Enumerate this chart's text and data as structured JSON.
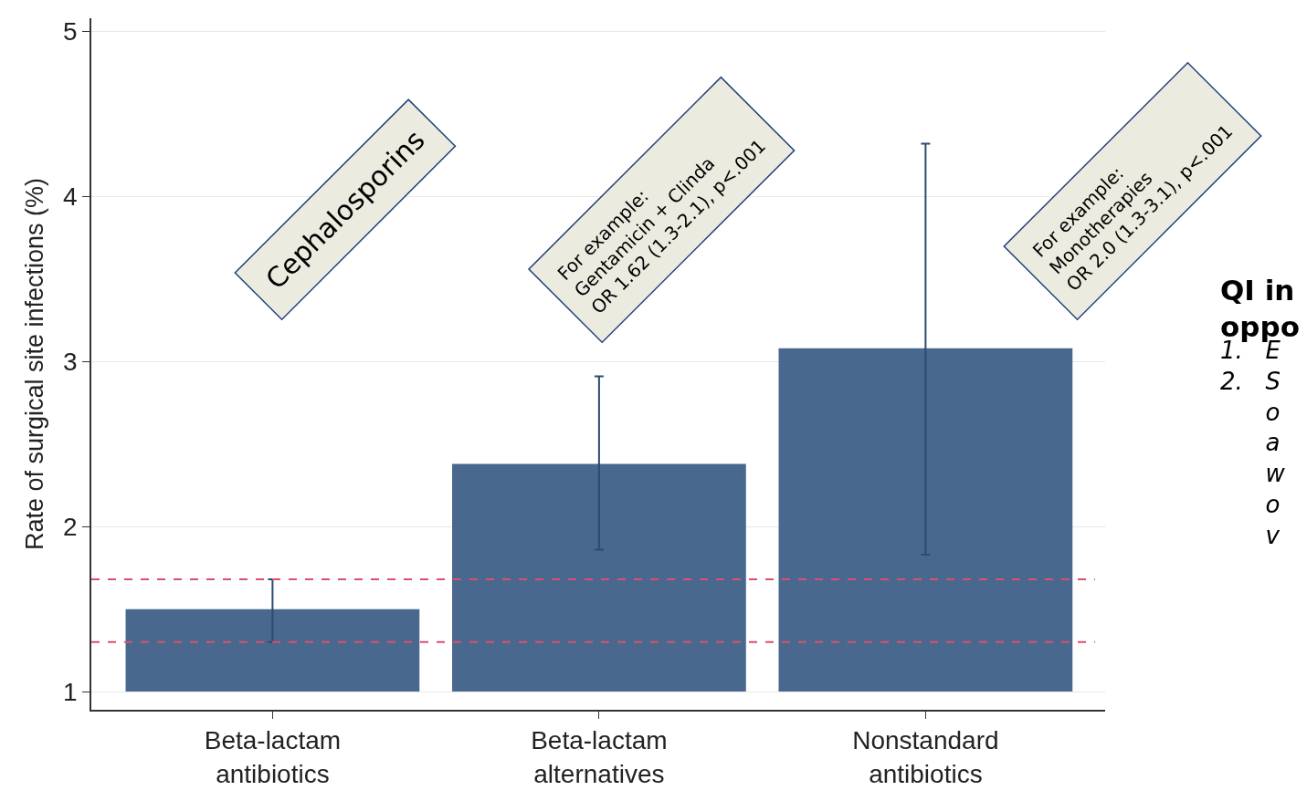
{
  "chart_data": {
    "type": "bar",
    "ylabel": "Rate of surgical site infections (%)",
    "categories": [
      "Beta-lactam\nantibiotics",
      "Beta-lactam\nalternatives",
      "Nonstandard\nantibiotics"
    ],
    "base": [
      1,
      1,
      1
    ],
    "values": [
      0.5,
      1.38,
      2.08
    ],
    "color": "#48698d",
    "errors": [
      [
        1.3,
        1.68
      ],
      [
        1.86,
        2.91
      ],
      [
        1.83,
        4.32
      ]
    ],
    "ylim": [
      0.89,
      5.08
    ],
    "yticks": [
      1,
      2,
      3,
      4,
      5
    ],
    "grid": "y",
    "ref_lines": [
      {
        "axis": "y",
        "value": 1.68,
        "color": "#d9506e",
        "line_style": "dashed"
      },
      {
        "axis": "y",
        "value": 1.3,
        "color": "#d9506e",
        "line_style": "dashed"
      }
    ],
    "annotations": [
      "Cephalosporins",
      "For example:\nGentamicin + Clinda\nOR 1.62 (1.3-2.1), p<.001",
      "For example:\nMonotherapies\nOR 2.0 (1.3-3.1), p<.001",
      "QI in\noppo",
      "1.   E\n2.   S\n      o\n      a\n      w\n      o\n      v"
    ]
  }
}
